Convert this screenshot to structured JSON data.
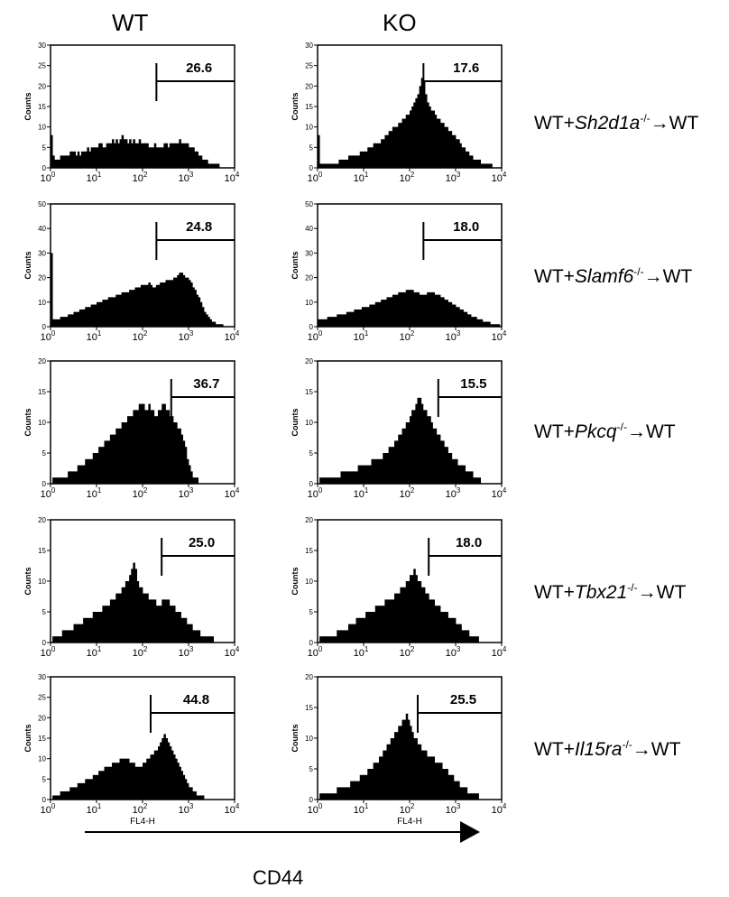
{
  "columns": [
    "WT",
    "KO"
  ],
  "rows": [
    {
      "prefix": "WT+",
      "gene": "Sh2d1a",
      "sup": "-/-",
      "suffix": "→WT"
    },
    {
      "prefix": "WT+",
      "gene": "Slamf6",
      "sup": "-/-",
      "suffix": "→WT"
    },
    {
      "prefix": "WT+",
      "gene": "Pkcq",
      "sup": "-/-",
      "suffix": "→WT"
    },
    {
      "prefix": "WT+",
      "gene": "Tbx21",
      "sup": "-/-",
      "suffix": "→WT"
    },
    {
      "prefix": "WT+",
      "gene": "Il15ra",
      "sup": "-/-",
      "suffix": "→WT"
    }
  ],
  "x_axis_title": "CD44",
  "panel_ylabel": "Counts",
  "panel_xlabel": "FL4-H",
  "chart_data": [
    {
      "type": "area",
      "row": 0,
      "col": "WT",
      "gate_value": 26.6,
      "gate_start": 200,
      "gate_end": 10000,
      "ylim": [
        0,
        30
      ],
      "yticks": [
        0,
        5,
        10,
        15,
        20,
        25,
        30
      ],
      "x_scale": "log",
      "xlim": [
        1,
        10000
      ],
      "xticks": [
        "10^0",
        "10^1",
        "10^2",
        "10^3",
        "10^4"
      ],
      "counts": [
        8,
        3,
        2,
        2,
        2,
        3,
        3,
        3,
        3,
        3,
        4,
        4,
        4,
        3,
        4,
        3,
        4,
        4,
        4,
        5,
        4,
        5,
        5,
        5,
        5,
        6,
        6,
        5,
        5,
        6,
        6,
        6,
        7,
        6,
        7,
        6,
        7,
        8,
        7,
        7,
        6,
        7,
        6,
        7,
        6,
        6,
        7,
        6,
        6,
        6,
        6,
        5,
        5,
        5,
        6,
        5,
        5,
        5,
        5,
        6,
        6,
        5,
        6,
        6,
        6,
        6,
        6,
        7,
        6,
        6,
        6,
        6,
        5,
        5,
        5,
        4,
        4,
        3,
        3,
        2,
        2,
        2,
        1,
        1,
        1,
        1,
        1,
        1,
        0,
        0,
        0,
        0,
        0,
        0,
        0,
        0
      ]
    },
    {
      "type": "area",
      "row": 0,
      "col": "KO",
      "gate_value": 17.6,
      "gate_start": 200,
      "gate_end": 10000,
      "ylim": [
        0,
        30
      ],
      "yticks": [
        0,
        5,
        10,
        15,
        20,
        25,
        30
      ],
      "x_scale": "log",
      "xlim": [
        1,
        10000
      ],
      "xticks": [
        "10^0",
        "10^1",
        "10^2",
        "10^3",
        "10^4"
      ],
      "counts": [
        8,
        1,
        1,
        1,
        1,
        1,
        1,
        1,
        1,
        1,
        1,
        2,
        2,
        2,
        2,
        2,
        3,
        3,
        3,
        3,
        3,
        3,
        4,
        4,
        4,
        4,
        5,
        5,
        5,
        6,
        6,
        6,
        6,
        7,
        7,
        8,
        8,
        9,
        9,
        10,
        10,
        10,
        11,
        11,
        12,
        12,
        13,
        13,
        14,
        15,
        16,
        17,
        18,
        20,
        22,
        21,
        18,
        16,
        15,
        14,
        14,
        13,
        12,
        12,
        11,
        11,
        10,
        10,
        9,
        9,
        8,
        8,
        7,
        7,
        6,
        5,
        5,
        4,
        4,
        3,
        3,
        2,
        2,
        2,
        2,
        1,
        1,
        1,
        1,
        1,
        1,
        0,
        0,
        0,
        0,
        0
      ]
    },
    {
      "type": "area",
      "row": 1,
      "col": "WT",
      "gate_value": 24.8,
      "gate_start": 200,
      "gate_end": 10000,
      "ylim": [
        0,
        50
      ],
      "yticks": [
        0,
        10,
        20,
        30,
        40,
        50
      ],
      "x_scale": "log",
      "xlim": [
        1,
        10000
      ],
      "xticks": [
        "10^0",
        "10^1",
        "10^2",
        "10^3",
        "10^4"
      ],
      "counts": [
        30,
        3,
        3,
        3,
        3,
        4,
        4,
        4,
        4,
        5,
        5,
        5,
        6,
        6,
        6,
        7,
        7,
        7,
        8,
        8,
        8,
        9,
        9,
        9,
        10,
        10,
        10,
        11,
        11,
        11,
        12,
        12,
        12,
        12,
        13,
        13,
        13,
        14,
        14,
        14,
        14,
        15,
        15,
        15,
        16,
        16,
        16,
        17,
        17,
        17,
        17,
        18,
        17,
        16,
        16,
        17,
        17,
        18,
        18,
        18,
        19,
        19,
        19,
        19,
        20,
        20,
        21,
        22,
        22,
        21,
        20,
        20,
        19,
        18,
        16,
        15,
        13,
        12,
        10,
        8,
        6,
        5,
        4,
        3,
        2,
        2,
        1,
        1,
        1,
        1,
        0,
        0,
        0,
        0,
        0,
        0
      ]
    },
    {
      "type": "area",
      "row": 1,
      "col": "KO",
      "gate_value": 18.0,
      "gate_start": 200,
      "gate_end": 10000,
      "ylim": [
        0,
        50
      ],
      "yticks": [
        0,
        10,
        20,
        30,
        40,
        50
      ],
      "x_scale": "log",
      "xlim": [
        1,
        10000
      ],
      "xticks": [
        "10^0",
        "10^1",
        "10^2",
        "10^3",
        "10^4"
      ],
      "counts": [
        3,
        3,
        3,
        3,
        3,
        4,
        4,
        4,
        4,
        4,
        5,
        5,
        5,
        5,
        5,
        6,
        6,
        6,
        6,
        7,
        7,
        7,
        7,
        8,
        8,
        8,
        8,
        9,
        9,
        9,
        10,
        10,
        10,
        11,
        11,
        11,
        12,
        12,
        12,
        13,
        13,
        13,
        14,
        14,
        14,
        14,
        15,
        15,
        15,
        15,
        14,
        14,
        14,
        13,
        13,
        13,
        13,
        14,
        14,
        14,
        14,
        13,
        13,
        13,
        12,
        12,
        11,
        11,
        10,
        10,
        9,
        9,
        8,
        8,
        7,
        7,
        6,
        6,
        5,
        5,
        4,
        4,
        4,
        3,
        3,
        3,
        2,
        2,
        2,
        2,
        1,
        1,
        1,
        1,
        1,
        0
      ]
    },
    {
      "type": "area",
      "row": 2,
      "col": "WT",
      "gate_value": 36.7,
      "gate_start": 420,
      "gate_end": 10000,
      "ylim": [
        0,
        20
      ],
      "yticks": [
        0,
        5,
        10,
        15,
        20
      ],
      "x_scale": "log",
      "xlim": [
        1,
        10000
      ],
      "xticks": [
        "10^0",
        "10^1",
        "10^2",
        "10^3",
        "10^4"
      ],
      "counts": [
        0,
        1,
        1,
        1,
        1,
        1,
        1,
        1,
        1,
        2,
        2,
        2,
        2,
        2,
        3,
        3,
        3,
        3,
        4,
        4,
        4,
        4,
        5,
        5,
        5,
        6,
        6,
        6,
        7,
        7,
        7,
        8,
        8,
        8,
        9,
        9,
        9,
        10,
        10,
        10,
        11,
        11,
        11,
        12,
        12,
        12,
        13,
        13,
        13,
        12,
        12,
        13,
        12,
        12,
        11,
        11,
        12,
        12,
        13,
        13,
        12,
        12,
        11,
        11,
        10,
        10,
        9,
        9,
        8,
        7,
        6,
        4,
        3,
        2,
        1,
        1,
        1,
        0,
        0,
        0,
        0,
        0,
        0,
        0,
        0,
        0,
        0,
        0,
        0,
        0,
        0,
        0,
        0,
        0,
        0,
        0
      ]
    },
    {
      "type": "area",
      "row": 2,
      "col": "KO",
      "gate_value": 15.5,
      "gate_start": 420,
      "gate_end": 10000,
      "ylim": [
        0,
        20
      ],
      "yticks": [
        0,
        5,
        10,
        15,
        20
      ],
      "x_scale": "log",
      "xlim": [
        1,
        10000
      ],
      "xticks": [
        "10^0",
        "10^1",
        "10^2",
        "10^3",
        "10^4"
      ],
      "counts": [
        0,
        1,
        1,
        1,
        1,
        1,
        1,
        1,
        1,
        1,
        1,
        1,
        2,
        2,
        2,
        2,
        2,
        2,
        2,
        2,
        2,
        3,
        3,
        3,
        3,
        3,
        3,
        3,
        4,
        4,
        4,
        4,
        4,
        4,
        5,
        5,
        5,
        6,
        6,
        6,
        7,
        7,
        8,
        8,
        9,
        9,
        10,
        10,
        11,
        12,
        12,
        13,
        14,
        14,
        13,
        12,
        12,
        11,
        11,
        10,
        9,
        9,
        8,
        8,
        7,
        7,
        6,
        6,
        5,
        5,
        4,
        4,
        4,
        3,
        3,
        3,
        3,
        2,
        2,
        2,
        2,
        1,
        1,
        1,
        1,
        0,
        0,
        0,
        0,
        0,
        0,
        0,
        0,
        0,
        0,
        0
      ]
    },
    {
      "type": "area",
      "row": 3,
      "col": "WT",
      "gate_value": 25.0,
      "gate_start": 260,
      "gate_end": 10000,
      "ylim": [
        0,
        20
      ],
      "yticks": [
        0,
        5,
        10,
        15,
        20
      ],
      "x_scale": "log",
      "xlim": [
        1,
        10000
      ],
      "xticks": [
        "10^0",
        "10^1",
        "10^2",
        "10^3",
        "10^4"
      ],
      "counts": [
        0,
        1,
        1,
        1,
        1,
        1,
        2,
        2,
        2,
        2,
        2,
        2,
        3,
        3,
        3,
        3,
        3,
        4,
        4,
        4,
        4,
        4,
        5,
        5,
        5,
        5,
        5,
        6,
        6,
        6,
        6,
        7,
        7,
        7,
        8,
        8,
        8,
        9,
        9,
        10,
        10,
        11,
        12,
        13,
        12,
        10,
        9,
        9,
        8,
        8,
        8,
        7,
        7,
        7,
        7,
        6,
        6,
        6,
        7,
        7,
        7,
        7,
        6,
        6,
        6,
        5,
        5,
        5,
        4,
        4,
        4,
        3,
        3,
        3,
        2,
        2,
        2,
        2,
        1,
        1,
        1,
        1,
        1,
        1,
        1,
        0,
        0,
        0,
        0,
        0,
        0,
        0,
        0,
        0,
        0,
        0
      ]
    },
    {
      "type": "area",
      "row": 3,
      "col": "KO",
      "gate_value": 18.0,
      "gate_start": 260,
      "gate_end": 10000,
      "ylim": [
        0,
        20
      ],
      "yticks": [
        0,
        5,
        10,
        15,
        20
      ],
      "x_scale": "log",
      "xlim": [
        1,
        10000
      ],
      "xticks": [
        "10^0",
        "10^1",
        "10^2",
        "10^3",
        "10^4"
      ],
      "counts": [
        0,
        1,
        1,
        1,
        1,
        1,
        1,
        1,
        1,
        1,
        2,
        2,
        2,
        2,
        2,
        2,
        3,
        3,
        3,
        3,
        4,
        4,
        4,
        4,
        4,
        5,
        5,
        5,
        5,
        5,
        6,
        6,
        6,
        6,
        6,
        7,
        7,
        7,
        7,
        7,
        8,
        8,
        8,
        9,
        9,
        9,
        10,
        10,
        11,
        11,
        12,
        11,
        10,
        10,
        9,
        9,
        8,
        8,
        7,
        7,
        7,
        6,
        6,
        6,
        5,
        5,
        5,
        5,
        4,
        4,
        4,
        4,
        3,
        3,
        3,
        2,
        2,
        2,
        2,
        1,
        1,
        1,
        1,
        1,
        0,
        0,
        0,
        0,
        0,
        0,
        0,
        0,
        0,
        0,
        0,
        0
      ]
    },
    {
      "type": "area",
      "row": 4,
      "col": "WT",
      "gate_value": 44.8,
      "gate_start": 150,
      "gate_end": 10000,
      "ylim": [
        0,
        30
      ],
      "yticks": [
        0,
        5,
        10,
        15,
        20,
        25,
        30
      ],
      "x_scale": "log",
      "xlim": [
        1,
        10000
      ],
      "xticks": [
        "10^0",
        "10^1",
        "10^2",
        "10^3",
        "10^4"
      ],
      "counts": [
        0,
        1,
        1,
        1,
        1,
        2,
        2,
        2,
        2,
        2,
        3,
        3,
        3,
        3,
        4,
        4,
        4,
        4,
        5,
        5,
        5,
        5,
        6,
        6,
        6,
        7,
        7,
        7,
        8,
        8,
        8,
        8,
        9,
        9,
        9,
        9,
        10,
        10,
        10,
        10,
        10,
        9,
        9,
        9,
        8,
        8,
        8,
        8,
        9,
        9,
        10,
        10,
        11,
        11,
        12,
        12,
        13,
        14,
        15,
        16,
        15,
        14,
        13,
        12,
        11,
        10,
        9,
        8,
        7,
        6,
        5,
        4,
        3,
        3,
        2,
        2,
        1,
        1,
        1,
        1,
        0,
        0,
        0,
        0,
        0,
        0,
        0,
        0,
        0,
        0,
        0,
        0,
        0,
        0,
        0,
        0
      ]
    },
    {
      "type": "area",
      "row": 4,
      "col": "KO",
      "gate_value": 25.5,
      "gate_start": 150,
      "gate_end": 10000,
      "ylim": [
        0,
        20
      ],
      "yticks": [
        0,
        5,
        10,
        15,
        20
      ],
      "x_scale": "log",
      "xlim": [
        1,
        10000
      ],
      "xticks": [
        "10^0",
        "10^1",
        "10^2",
        "10^3",
        "10^4"
      ],
      "counts": [
        0,
        1,
        1,
        1,
        1,
        1,
        1,
        1,
        1,
        1,
        2,
        2,
        2,
        2,
        2,
        2,
        2,
        3,
        3,
        3,
        3,
        3,
        4,
        4,
        4,
        4,
        5,
        5,
        5,
        6,
        6,
        6,
        7,
        7,
        8,
        8,
        9,
        9,
        10,
        10,
        11,
        11,
        12,
        12,
        13,
        13,
        14,
        13,
        12,
        11,
        10,
        10,
        9,
        9,
        8,
        8,
        8,
        7,
        7,
        7,
        7,
        6,
        6,
        6,
        6,
        5,
        5,
        5,
        4,
        4,
        4,
        3,
        3,
        3,
        2,
        2,
        2,
        2,
        1,
        1,
        1,
        1,
        1,
        1,
        0,
        0,
        0,
        0,
        0,
        0,
        0,
        0,
        0,
        0,
        0,
        0
      ]
    }
  ]
}
